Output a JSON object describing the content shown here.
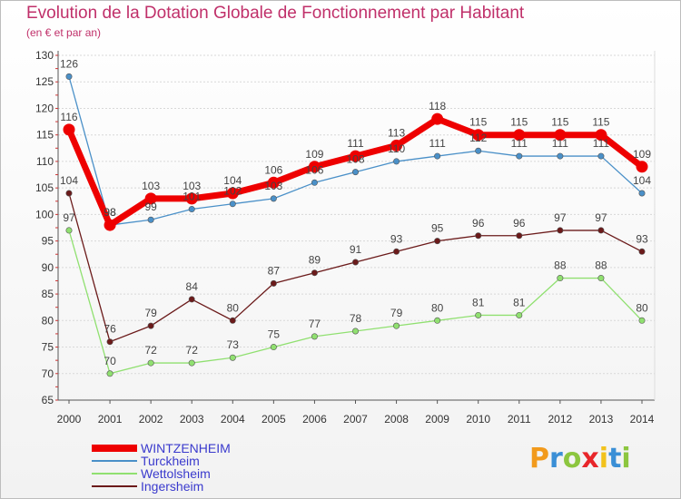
{
  "header": {
    "title": "Evolution de la Dotation Globale de Fonctionnement par Habitant",
    "subtitle": "(en € et par an)"
  },
  "chart_data": {
    "type": "line",
    "title": "Evolution de la Dotation Globale de Fonctionnement par Habitant",
    "subtitle": "(en € et par an)",
    "xlabel": "",
    "ylabel": "",
    "x": [
      "2000",
      "2001",
      "2002",
      "2003",
      "2004",
      "2005",
      "2006",
      "2007",
      "2008",
      "2009",
      "2010",
      "2011",
      "2012",
      "2013",
      "2014"
    ],
    "ylim": [
      65,
      130
    ],
    "yticks": [
      65,
      70,
      75,
      80,
      85,
      90,
      95,
      100,
      105,
      110,
      115,
      120,
      125,
      130
    ],
    "grid": "horizontal",
    "legend_position": "bottom-left",
    "series": [
      {
        "name": "WINTZENHEIM",
        "color": "#ee0000",
        "values": [
          116,
          98,
          103,
          103,
          104,
          106,
          109,
          111,
          113,
          118,
          115,
          115,
          115,
          115,
          109
        ]
      },
      {
        "name": "Turckheim",
        "color": "#4a90c8",
        "values": [
          126,
          98,
          99,
          101,
          102,
          103,
          106,
          108,
          110,
          111,
          112,
          111,
          111,
          111,
          104
        ]
      },
      {
        "name": "Wettolsheim",
        "color": "#90e070",
        "values": [
          97,
          70,
          72,
          72,
          73,
          75,
          77,
          78,
          79,
          80,
          81,
          81,
          88,
          88,
          80
        ]
      },
      {
        "name": "Ingersheim",
        "color": "#6b1a1a",
        "values": [
          104,
          76,
          79,
          84,
          80,
          87,
          89,
          91,
          93,
          95,
          96,
          96,
          97,
          97,
          93
        ]
      }
    ]
  },
  "logo": {
    "letters": [
      {
        "char": "P",
        "color": "#f29a1c"
      },
      {
        "char": "r",
        "color": "#3a8fd6"
      },
      {
        "char": "o",
        "color": "#8cc63f"
      },
      {
        "char": "x",
        "color": "#e8262a"
      },
      {
        "char": "i",
        "color": "#f2c21c"
      },
      {
        "char": "t",
        "color": "#3a8fd6"
      },
      {
        "char": "i",
        "color": "#8cc63f"
      }
    ]
  }
}
